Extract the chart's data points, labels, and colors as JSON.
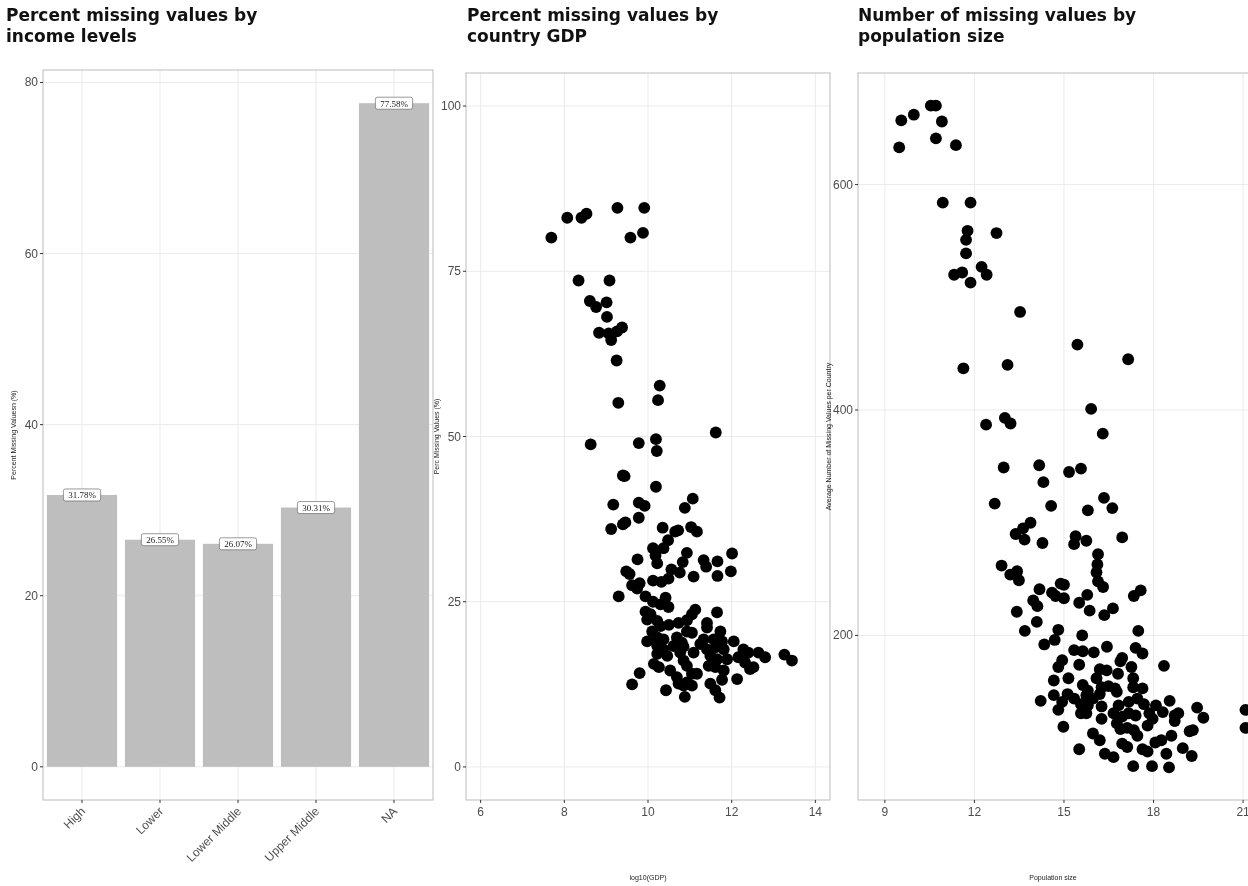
{
  "chart_data": [
    {
      "type": "bar",
      "title": "Percent missing values by income levels",
      "ylabel": "Percent Missing Valuesn (%)",
      "categories": [
        "High",
        "Lower",
        "Lower Middle",
        "Upper Middle",
        "NA"
      ],
      "values": [
        31.78,
        26.55,
        26.07,
        30.31,
        77.58
      ],
      "value_labels": [
        "31.78%",
        "26.55%",
        "26.07%",
        "30.31%",
        "77.58%"
      ],
      "color": "#bebebe",
      "ylim": [
        -3.88,
        81.46
      ],
      "yticks": [
        0,
        20,
        40,
        60,
        80
      ],
      "grid": true
    },
    {
      "type": "scatter",
      "title": "Percent missing values by country GDP",
      "xlabel": "log10(GDP)",
      "ylabel": "Perc Missing Values (%)",
      "marker": "circle",
      "color": "#000000",
      "grid": true,
      "xlim": [
        5.65,
        14.35
      ],
      "xticks": [
        6,
        8,
        10,
        12,
        14
      ],
      "ylim": [
        -5,
        105
      ],
      "yticks": [
        0,
        25,
        50,
        75,
        100
      ],
      "x": [
        7.69,
        8.07,
        8.41,
        8.53,
        9.27,
        9.91,
        9.58,
        9.88,
        8.34,
        9.08,
        8.61,
        8.76,
        9.01,
        9.02,
        8.83,
        9.06,
        9.26,
        9.38,
        9.12,
        9.25,
        10.28,
        10.24,
        9.29,
        11.62,
        8.63,
        9.78,
        10.19,
        10.21,
        9.4,
        9.44,
        10.19,
        9.17,
        9.78,
        9.92,
        11.07,
        10.88,
        9.78,
        9.4,
        9.46,
        9.12,
        10.35,
        10.65,
        10.72,
        11.03,
        11.17,
        10.48,
        10.12,
        10.37,
        10.93,
        9.75,
        10.18,
        10.22,
        10.83,
        11.33,
        11.39,
        11.66,
        12.01,
        11.98,
        11.66,
        9.48,
        9.56,
        10.56,
        10.76,
        11.09,
        10.12,
        10.32,
        10.49,
        9.62,
        9.8,
        9.74,
        9.3,
        9.94,
        10.12,
        10.42,
        10.3,
        10.49,
        9.94,
        10.06,
        11.13,
        11.05,
        11.65,
        9.98,
        10.22,
        10.3,
        10.5,
        10.73,
        10.93,
        11.41,
        11.41,
        10.1,
        10.93,
        11.05,
        11.73,
        10.22,
        10.37,
        9.98,
        10.69,
        10.81,
        11.33,
        11.57,
        11.77,
        12.05,
        10.22,
        10.37,
        10.61,
        10.85,
        11.09,
        11.25,
        11.41,
        11.61,
        11.81,
        12.28,
        12.4,
        12.64,
        12.8,
        13.26,
        13.44,
        10.22,
        10.46,
        10.77,
        10.85,
        11.49,
        11.65,
        11.89,
        12.16,
        12.32,
        12.44,
        12.52,
        10.14,
        10.26,
        10.53,
        10.93,
        11.05,
        11.17,
        11.45,
        11.61,
        11.81,
        11.77,
        12.13,
        9.8,
        9.62,
        10.43,
        10.69,
        10.73,
        10.85,
        10.93,
        11.05,
        10.88,
        11.49,
        11.61,
        11.71
      ],
      "values": [
        80.1,
        83.1,
        83.1,
        83.7,
        84.6,
        84.6,
        80.1,
        80.8,
        73.6,
        73.6,
        70.5,
        69.6,
        70.3,
        68.1,
        65.7,
        65.6,
        65.9,
        66.5,
        64.6,
        61.5,
        57.7,
        55.5,
        55.1,
        50.6,
        48.8,
        49.0,
        49.6,
        47.8,
        44.1,
        44.0,
        42.4,
        39.7,
        40.0,
        39.5,
        40.6,
        39.2,
        37.7,
        36.7,
        37.0,
        36.0,
        36.2,
        35.6,
        35.8,
        36.3,
        35.6,
        34.3,
        33.1,
        33.1,
        32.4,
        31.4,
        32.0,
        30.8,
        31.0,
        31.3,
        30.3,
        31.1,
        32.3,
        29.6,
        28.9,
        29.6,
        29.2,
        29.9,
        29.4,
        28.8,
        28.2,
        28.0,
        28.5,
        27.5,
        27.8,
        27.0,
        25.8,
        25.8,
        25.0,
        25.6,
        24.6,
        24.2,
        23.5,
        23.1,
        23.8,
        23.1,
        23.4,
        22.3,
        22.1,
        21.3,
        21.5,
        21.8,
        22.2,
        21.8,
        21.1,
        20.5,
        20.5,
        20.3,
        20.5,
        19.6,
        19.3,
        19.0,
        19.6,
        18.8,
        19.3,
        19.3,
        19.0,
        19.0,
        18.3,
        17.8,
        18.3,
        18.2,
        17.3,
        18.6,
        17.8,
        18.1,
        17.8,
        17.8,
        17.3,
        17.3,
        16.6,
        17.0,
        16.1,
        17.1,
        16.8,
        17.3,
        16.1,
        16.8,
        16.3,
        16.3,
        16.6,
        15.8,
        14.8,
        15.1,
        15.6,
        15.1,
        14.6,
        15.3,
        14.1,
        14.1,
        15.3,
        15.1,
        14.6,
        13.2,
        13.3,
        14.2,
        12.5,
        11.6,
        13.6,
        12.6,
        12.3,
        12.8,
        12.3,
        10.6,
        12.6,
        11.6,
        10.5
      ]
    },
    {
      "type": "scatter",
      "title": "Number of missing values by population size",
      "xlabel": "Population size",
      "ylabel": "Average Number of Missing Values per Country",
      "marker": "circle",
      "color": "#000000",
      "grid": true,
      "xlim": [
        8.1,
        21.5
      ],
      "xticks": [
        9,
        12,
        15,
        18,
        21
      ],
      "ylim": [
        54,
        699
      ],
      "yticks": [
        200,
        400,
        600
      ],
      "x": [
        9.55,
        9.48,
        9.97,
        10.54,
        10.71,
        10.91,
        10.71,
        11.38,
        10.94,
        11.87,
        11.77,
        11.72,
        12.74,
        11.72,
        11.32,
        11.59,
        11.87,
        12.24,
        12.41,
        13.53,
        11.63,
        13.11,
        15.45,
        17.15,
        15.91,
        12.39,
        13.02,
        13.21,
        16.3,
        12.98,
        14.17,
        15.17,
        15.57,
        14.31,
        12.68,
        14.57,
        16.34,
        16.62,
        15.8,
        13.38,
        13.63,
        13.88,
        13.68,
        14.28,
        15.39,
        15.34,
        15.75,
        16.95,
        16.14,
        16.12,
        16.09,
        16.14,
        16.31,
        12.91,
        13.2,
        13.43,
        13.49,
        14.18,
        14.89,
        15.0,
        14.6,
        14.72,
        15.0,
        13.97,
        14.11,
        15.78,
        15.51,
        15.86,
        17.34,
        17.57,
        16.64,
        16.35,
        13.42,
        14.09,
        13.69,
        14.81,
        14.69,
        14.34,
        15.61,
        17.49,
        15.34,
        15.63,
        16.0,
        16.44,
        17.4,
        17.63,
        14.94,
        14.81,
        15.51,
        16.95,
        16.89,
        17.26,
        18.35,
        16.2,
        16.43,
        16.81,
        14.66,
        15.15,
        16.09,
        17.32,
        17.32,
        15.63,
        15.8,
        16.26,
        16.49,
        16.71,
        16.77,
        17.63,
        14.66,
        15.12,
        15.34,
        15.75,
        15.97,
        16.2,
        14.22,
        14.94,
        15.57,
        15.8,
        16.26,
        16.83,
        17.17,
        17.46,
        17.68,
        18.08,
        18.54,
        18.31,
        19.46,
        19.67,
        21.08,
        21.08,
        14.81,
        15.57,
        15.75,
        16.26,
        16.66,
        16.95,
        17.17,
        17.4,
        17.86,
        17.97,
        17.8,
        18.71,
        18.83,
        18.71,
        16.77,
        16.89,
        17.12,
        14.98,
        17.34,
        17.46,
        19.21,
        19.32,
        18.6,
        15.97,
        16.2,
        18.06,
        18.26,
        16.95,
        17.12,
        17.63,
        17.8,
        18.43,
        18.98,
        19.28,
        15.51,
        16.37,
        16.66,
        17.32,
        17.95,
        18.52
      ],
      "values": [
        657,
        633,
        662,
        670,
        670,
        656,
        641,
        635,
        584,
        584,
        559,
        551,
        557,
        539,
        520,
        522,
        513,
        527,
        520,
        487,
        437,
        440,
        458,
        445,
        401,
        387,
        393,
        388,
        379,
        349,
        351,
        345,
        348,
        336,
        317,
        315,
        322,
        313,
        311,
        290,
        295,
        300,
        285,
        282,
        288,
        281,
        284,
        287,
        272,
        263,
        256,
        248,
        243,
        262,
        254,
        257,
        249,
        241,
        246,
        245,
        238,
        235,
        233,
        231,
        226,
        236,
        229,
        222,
        235,
        240,
        224,
        218,
        221,
        212,
        204,
        205,
        196,
        192,
        200,
        204,
        187,
        186,
        185,
        190,
        189,
        184,
        178,
        172,
        174,
        180,
        177,
        172,
        173,
        170,
        169,
        166,
        160,
        162,
        162,
        162,
        154,
        156,
        151,
        154,
        155,
        153,
        150,
        153,
        147,
        148,
        144,
        147,
        144,
        148,
        142,
        141,
        139,
        138,
        137,
        138,
        141,
        144,
        139,
        138,
        142,
        132,
        136,
        127,
        134,
        118,
        134,
        131,
        131,
        126,
        131,
        128,
        131,
        129,
        131,
        126,
        120,
        129,
        131,
        124,
        122,
        117,
        118,
        119,
        116,
        111,
        115,
        116,
        111,
        113,
        107,
        105,
        107,
        104,
        101,
        99,
        97,
        95,
        100,
        93,
        99,
        95,
        92,
        84,
        84,
        83
      ]
    }
  ]
}
